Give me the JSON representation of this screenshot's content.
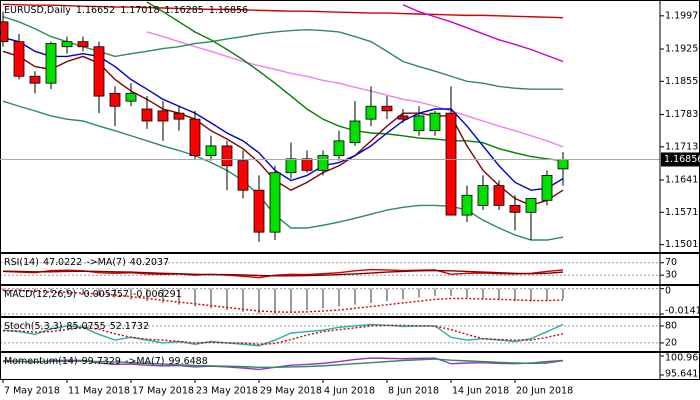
{
  "header": {
    "symbol": "EURUSD,Daily"
  },
  "chart_data": [
    {
      "type": "candlestick",
      "categories": [
        "7 May 2018",
        null,
        null,
        null,
        "11 May 2018",
        null,
        null,
        null,
        "17 May 2018",
        null,
        null,
        null,
        "23 May 2018",
        null,
        null,
        null,
        "29 May 2018",
        null,
        null,
        null,
        "4 Jun 2018",
        null,
        null,
        null,
        "8 Jun 2018",
        null,
        null,
        null,
        "14 Jun 2018",
        null,
        null,
        null,
        "20 Jun 2018",
        null,
        null,
        null
      ],
      "open": [
        1.1984,
        1.1941,
        1.1866,
        1.1851,
        1.193,
        1.1941,
        1.193,
        1.1829,
        1.1812,
        1.1795,
        1.1791,
        1.1786,
        1.1773,
        1.1694,
        1.1715,
        1.1683,
        1.1619,
        1.1528,
        1.1657,
        1.1687,
        1.1662,
        1.1694,
        1.1722,
        1.1773,
        1.1801,
        1.178,
        1.1748,
        1.1748,
        1.1786,
        1.1565,
        1.1586,
        1.1629,
        1.1586,
        1.1571,
        1.1597,
        1.16652
      ],
      "high": [
        1.2006,
        1.1958,
        1.1877,
        1.1941,
        1.1952,
        1.1952,
        1.1941,
        1.1844,
        1.1851,
        1.1823,
        1.1812,
        1.1801,
        1.1791,
        1.1737,
        1.1726,
        1.1705,
        1.1651,
        1.1672,
        1.1722,
        1.1705,
        1.1705,
        1.1748,
        1.1812,
        1.1844,
        1.1823,
        1.1795,
        1.1801,
        1.1791,
        1.1844,
        1.1629,
        1.1651,
        1.164,
        1.1608,
        1.1597,
        1.1662,
        1.17018
      ],
      "low": [
        1.193,
        1.1859,
        1.1829,
        1.1838,
        1.1915,
        1.192,
        1.1786,
        1.1758,
        1.1801,
        1.1752,
        1.1726,
        1.1748,
        1.1687,
        1.1683,
        1.1619,
        1.1601,
        1.1507,
        1.1511,
        1.1644,
        1.1657,
        1.1651,
        1.1683,
        1.1715,
        1.1758,
        1.1773,
        1.1765,
        1.1737,
        1.1737,
        1.1565,
        1.155,
        1.1576,
        1.1576,
        1.1532,
        1.1511,
        1.1586,
        1.16285
      ],
      "close": [
        1.1941,
        1.1866,
        1.1851,
        1.1937,
        1.1941,
        1.193,
        1.1823,
        1.1801,
        1.1829,
        1.1769,
        1.1769,
        1.1773,
        1.1694,
        1.1715,
        1.1672,
        1.1619,
        1.1528,
        1.1657,
        1.1687,
        1.1662,
        1.1694,
        1.1726,
        1.1769,
        1.1801,
        1.1791,
        1.1773,
        1.178,
        1.1786,
        1.1565,
        1.1608,
        1.1629,
        1.1586,
        1.1571,
        1.1601,
        1.1651,
        1.16856
      ],
      "up_color": "#00e000",
      "down_color": "#ff0000",
      "ylim": [
        1.1485,
        1.2027
      ],
      "yticks": [
        {
          "value": 1.1997,
          "label": "1.19970"
        },
        {
          "value": 1.1925,
          "label": "1.19250"
        },
        {
          "value": 1.1855,
          "label": "1.18550"
        },
        {
          "value": 1.1783,
          "label": "1.17830"
        },
        {
          "value": 1.1713,
          "label": "1.17130"
        },
        {
          "value": 1.1641,
          "label": "1.16410"
        },
        {
          "value": 1.1571,
          "label": "1.15710"
        },
        {
          "value": 1.1501,
          "label": "1.15010"
        }
      ],
      "grid": false,
      "series": [
        {
          "color": "#d00000",
          "values": [
            1.2022,
            1.2021,
            1.202,
            1.202,
            1.2019,
            1.2018,
            1.2017,
            1.2016,
            1.2016,
            1.2015,
            1.2014,
            1.2013,
            1.2012,
            1.2011,
            1.2011,
            1.201,
            1.2009,
            1.2008,
            1.2007,
            1.2007,
            1.2006,
            1.2005,
            1.2004,
            1.2003,
            1.2003,
            1.2002,
            1.2001,
            1.2,
            1.1999,
            1.1998,
            1.1998,
            1.1997,
            1.1996,
            1.1995,
            1.1994,
            1.1993
          ]
        },
        {
          "color": "#cc00cc",
          "values": [
            null,
            null,
            null,
            null,
            null,
            null,
            null,
            null,
            null,
            null,
            null,
            null,
            null,
            null,
            null,
            null,
            null,
            null,
            null,
            null,
            null,
            null,
            null,
            null,
            null,
            1.2021,
            1.2006,
            1.1995,
            1.1984,
            1.1971,
            1.1958,
            1.1945,
            1.1935,
            1.1924,
            1.1911,
            1.1898
          ]
        },
        {
          "color": "#ee82ee",
          "values": [
            null,
            null,
            null,
            null,
            null,
            null,
            null,
            null,
            null,
            1.1962,
            1.1952,
            1.1941,
            1.193,
            1.192,
            1.1909,
            1.1898,
            1.1889,
            1.1881,
            1.1872,
            1.1866,
            1.1857,
            1.1851,
            1.1842,
            1.1834,
            1.1825,
            1.1816,
            1.181,
            1.1801,
            1.1791,
            1.178,
            1.1769,
            1.1758,
            1.1748,
            1.1737,
            1.1726,
            1.1713
          ]
        },
        {
          "color": "#2e8b57",
          "values": [
            1.1995,
            1.1984,
            1.1969,
            1.1952,
            1.1941,
            1.193,
            1.192,
            1.1909,
            1.1915,
            1.192,
            1.1926,
            1.193,
            1.1937,
            1.1941,
            1.1947,
            1.1952,
            1.1958,
            1.1962,
            1.1965,
            1.1967,
            1.1965,
            1.1962,
            1.1952,
            1.1941,
            1.192,
            1.1898,
            1.1887,
            1.1877,
            1.1866,
            1.1855,
            1.1851,
            1.1844,
            1.184,
            1.1838,
            1.1838,
            1.1838
          ]
        },
        {
          "color": "#2e8b57",
          "values": [
            1.1812,
            1.1801,
            1.1791,
            1.178,
            1.1773,
            1.1769,
            1.1758,
            1.1748,
            1.1737,
            1.1726,
            1.1715,
            1.1705,
            1.1694,
            1.1679,
            1.1662,
            1.164,
            1.1608,
            1.1565,
            1.1537,
            1.1537,
            1.1543,
            1.155,
            1.1558,
            1.1567,
            1.1576,
            1.1582,
            1.1586,
            1.1586,
            1.1584,
            1.1576,
            1.1554,
            1.1537,
            1.1522,
            1.1511,
            1.1511,
            1.1517
          ]
        },
        {
          "color": "#008000",
          "values": [
            null,
            null,
            null,
            null,
            null,
            null,
            null,
            null,
            null,
            1.2027,
            1.2006,
            1.1984,
            1.1962,
            1.1945,
            1.1924,
            1.1902,
            1.1877,
            1.1851,
            1.1823,
            1.1795,
            1.1773,
            1.1758,
            1.1748,
            1.1743,
            1.1741,
            1.1737,
            1.1732,
            1.173,
            1.1726,
            1.1726,
            1.1722,
            1.1709,
            1.17,
            1.1692,
            1.1687,
            1.1683
          ]
        },
        {
          "color": "#800000",
          "values": [
            1.192,
            1.1909,
            1.1887,
            1.1881,
            1.1898,
            1.1909,
            1.1894,
            1.1859,
            1.1834,
            1.1816,
            1.1795,
            1.1786,
            1.1773,
            1.1748,
            1.173,
            1.1709,
            1.1679,
            1.164,
            1.1619,
            1.1636,
            1.1657,
            1.1672,
            1.1694,
            1.1726,
            1.1758,
            1.1786,
            1.1786,
            1.178,
            1.178,
            1.1715,
            1.1662,
            1.1629,
            1.1601,
            1.1586,
            1.1597,
            1.1619
          ]
        },
        {
          "color": "#0000cc",
          "values": [
            1.195,
            1.1941,
            1.192,
            1.1909,
            1.1909,
            1.1915,
            1.1909,
            1.1887,
            1.1859,
            1.1838,
            1.1816,
            1.1801,
            1.1786,
            1.1765,
            1.1743,
            1.1726,
            1.17,
            1.1662,
            1.164,
            1.1651,
            1.1672,
            1.1679,
            1.1694,
            1.1715,
            1.1743,
            1.1769,
            1.1786,
            1.1795,
            1.1795,
            1.1758,
            1.1715,
            1.1672,
            1.1636,
            1.1619,
            1.1623,
            1.1644
          ]
        }
      ]
    },
    {
      "type": "line",
      "title": "RSI(14)",
      "ylim": [
        5,
        98
      ],
      "yticks": [
        70,
        30
      ],
      "grid": true,
      "series": [
        {
          "color": "#d00000",
          "values": [
            42,
            40,
            38,
            45,
            46,
            44,
            38,
            36,
            38,
            34,
            33,
            34,
            30,
            33,
            30,
            27,
            22,
            30,
            33,
            32,
            35,
            38,
            44,
            48,
            47,
            45,
            46,
            47,
            33,
            36,
            37,
            35,
            34,
            36,
            42,
            47.0222
          ]
        },
        {
          "name": "->MA(7)",
          "color": "#800000",
          "values": [
            43,
            42,
            41,
            41,
            42,
            43,
            42,
            41,
            40,
            38,
            36,
            35,
            33,
            32,
            32,
            31,
            29,
            28,
            28,
            29,
            30,
            32,
            34,
            37,
            40,
            42,
            44,
            45,
            44,
            42,
            40,
            38,
            36,
            35,
            36,
            40.2037
          ]
        }
      ]
    },
    {
      "type": "line",
      "title": "MACD(12,26,9)",
      "ylim": [
        -0.014194,
        0.0015
      ],
      "yticks": [
        0,
        -0.014194
      ],
      "grid": true,
      "series": [
        {
          "type": "bar",
          "color": "#555555",
          "values": [
            -0.001,
            -0.001,
            -0.002,
            -0.002,
            -0.002,
            -0.003,
            -0.004,
            -0.005,
            -0.006,
            -0.007,
            -0.008,
            -0.009,
            -0.01,
            -0.011,
            -0.012,
            -0.013,
            -0.014,
            -0.014,
            -0.013,
            -0.012,
            -0.011,
            -0.01,
            -0.009,
            -0.008,
            -0.007,
            -0.006,
            -0.005,
            -0.004,
            -0.004,
            -0.005,
            -0.006,
            -0.0065,
            -0.007,
            -0.0072,
            -0.0068,
            -0.005757
          ]
        },
        {
          "dash": true,
          "color": "#d00000",
          "values": [
            -0.001,
            -0.001,
            -0.0015,
            -0.002,
            -0.002,
            -0.0025,
            -0.003,
            -0.0035,
            -0.0045,
            -0.0055,
            -0.0065,
            -0.0075,
            -0.0085,
            -0.0095,
            -0.0105,
            -0.0115,
            -0.0125,
            -0.013,
            -0.0132,
            -0.013,
            -0.0125,
            -0.012,
            -0.011,
            -0.01,
            -0.009,
            -0.008,
            -0.007,
            -0.006,
            -0.0055,
            -0.0055,
            -0.0058,
            -0.006,
            -0.0063,
            -0.0066,
            -0.0067,
            -0.006291
          ]
        }
      ]
    },
    {
      "type": "line",
      "title": "Stoch(5,3,3)",
      "ylim": [
        -5,
        108
      ],
      "yticks": [
        80,
        20
      ],
      "grid": true,
      "series": [
        {
          "color": "#20b2aa",
          "values": [
            65,
            60,
            50,
            70,
            80,
            75,
            50,
            30,
            40,
            30,
            20,
            25,
            15,
            25,
            20,
            15,
            10,
            30,
            55,
            60,
            65,
            75,
            80,
            85,
            82,
            78,
            80,
            80,
            40,
            30,
            35,
            30,
            25,
            35,
            60,
            85.0755
          ]
        },
        {
          "dash": true,
          "color": "#d00000",
          "values": [
            63,
            62,
            58,
            60,
            67,
            75,
            68,
            52,
            40,
            33,
            30,
            25,
            20,
            22,
            20,
            20,
            15,
            18,
            32,
            48,
            60,
            67,
            73,
            80,
            82,
            82,
            80,
            79,
            67,
            50,
            35,
            32,
            30,
            30,
            40,
            52.1732
          ]
        }
      ]
    },
    {
      "type": "line",
      "title": "Momentum(14)",
      "ylim": [
        95.6419,
        100.9647
      ],
      "yticks": [
        100.9647,
        95.6419
      ],
      "grid": false,
      "series": [
        {
          "color": "#9932cc",
          "values": [
            99.6,
            99.5,
            99.2,
            99.6,
            99.8,
            99.7,
            99.0,
            98.6,
            98.7,
            98.4,
            98.2,
            98.3,
            97.9,
            98.1,
            97.9,
            97.6,
            97.2,
            97.8,
            98.4,
            98.6,
            98.9,
            99.4,
            100.0,
            100.4,
            100.3,
            100.2,
            100.3,
            100.4,
            98.8,
            99.0,
            99.1,
            98.9,
            98.8,
            99.0,
            99.4,
            99.7329
          ]
        },
        {
          "name": "->MA(7)",
          "color": "#2e8b57",
          "values": [
            99.4,
            99.4,
            99.4,
            99.4,
            99.5,
            99.5,
            99.4,
            99.3,
            99.1,
            98.9,
            98.7,
            98.5,
            98.3,
            98.2,
            98.1,
            98.0,
            97.8,
            97.8,
            97.9,
            98.0,
            98.2,
            98.5,
            98.8,
            99.1,
            99.4,
            99.7,
            99.9,
            100.1,
            99.8,
            99.6,
            99.4,
            99.2,
            99.0,
            98.9,
            99.0,
            99.6488
          ]
        }
      ]
    }
  ]
}
